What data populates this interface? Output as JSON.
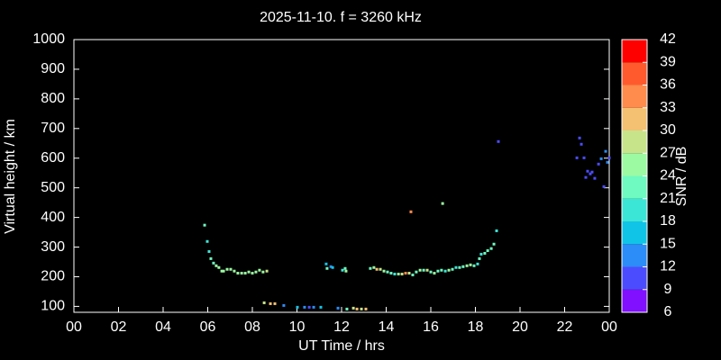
{
  "chart_data": {
    "type": "scatter",
    "title": "2025-11-10. f = 3260 kHz",
    "x_label": "UT Time / hrs",
    "y_label": "Virtual height / km",
    "xlim": [
      0,
      24
    ],
    "xticks": [
      {
        "value": 0,
        "label": "00"
      },
      {
        "value": 2,
        "label": "02"
      },
      {
        "value": 4,
        "label": "04"
      },
      {
        "value": 6,
        "label": "06"
      },
      {
        "value": 8,
        "label": "08"
      },
      10,
      12,
      14,
      16,
      18,
      20,
      22,
      {
        "value": 24,
        "label": "00"
      }
    ],
    "ylim": [
      80,
      1000
    ],
    "yticks": [
      100,
      200,
      300,
      400,
      500,
      600,
      700,
      800,
      900,
      1000
    ],
    "x": [
      5.86,
      5.98,
      6.06,
      6.14,
      6.26,
      6.38,
      6.5,
      6.63,
      6.71,
      6.87,
      7.03,
      7.19,
      7.35,
      7.52,
      7.68,
      7.84,
      8.0,
      8.16,
      8.32,
      8.48,
      8.65,
      8.53,
      8.81,
      9.01,
      9.41,
      10.02,
      10.34,
      10.55,
      10.75,
      11.07,
      11.84,
      12.24,
      12.53,
      12.69,
      12.89,
      13.09,
      11.31,
      11.35,
      11.52,
      11.6,
      12.04,
      12.16,
      12.2,
      13.29,
      13.45,
      13.58,
      13.74,
      13.9,
      14.06,
      14.22,
      14.38,
      14.55,
      14.71,
      14.87,
      15.03,
      15.19,
      15.35,
      15.52,
      15.68,
      15.84,
      16.0,
      16.16,
      16.32,
      16.48,
      16.65,
      16.81,
      16.97,
      17.13,
      17.29,
      17.45,
      17.62,
      17.78,
      17.94,
      18.1,
      18.18,
      18.26,
      18.42,
      18.55,
      18.71,
      18.83,
      18.95,
      15.11,
      16.53,
      19.03,
      22.67,
      22.75,
      22.55,
      22.87,
      23.03,
      23.15,
      23.23,
      22.95,
      23.35,
      23.52,
      23.64,
      23.76,
      23.84,
      23.92,
      24.0
    ],
    "values": [
      374,
      319,
      285,
      261,
      246,
      237,
      231,
      219,
      219,
      225,
      225,
      219,
      212,
      212,
      212,
      216,
      212,
      216,
      222,
      216,
      219,
      112,
      109,
      109,
      103,
      97,
      97,
      97,
      97,
      97,
      94,
      91,
      94,
      91,
      91,
      91,
      243,
      228,
      234,
      231,
      222,
      228,
      219,
      228,
      231,
      225,
      225,
      219,
      216,
      212,
      209,
      209,
      209,
      212,
      212,
      206,
      216,
      222,
      222,
      222,
      216,
      212,
      219,
      222,
      219,
      222,
      225,
      231,
      231,
      234,
      237,
      240,
      237,
      243,
      261,
      276,
      279,
      288,
      295,
      310,
      355,
      419,
      447,
      656,
      668,
      647,
      601,
      601,
      556,
      547,
      553,
      535,
      532,
      580,
      598,
      504,
      623,
      586,
      601
    ],
    "snr": [
      21,
      18,
      18,
      21,
      21,
      24,
      24,
      24,
      24,
      24,
      24,
      24,
      24,
      24,
      24,
      24,
      24,
      24,
      24,
      24,
      27,
      27,
      30,
      30,
      12,
      15,
      12,
      9,
      12,
      15,
      12,
      21,
      27,
      30,
      27,
      30,
      15,
      21,
      12,
      15,
      18,
      21,
      24,
      21,
      24,
      30,
      27,
      24,
      21,
      21,
      18,
      24,
      27,
      33,
      27,
      21,
      21,
      24,
      21,
      27,
      21,
      24,
      21,
      21,
      18,
      24,
      21,
      18,
      21,
      21,
      24,
      24,
      21,
      18,
      21,
      18,
      21,
      21,
      21,
      21,
      18,
      33,
      24,
      9,
      9,
      9,
      9,
      9,
      9,
      9,
      9,
      9,
      9,
      9,
      12,
      9,
      12,
      12,
      9
    ],
    "colorbar": {
      "label": "SNR / dB",
      "lim": [
        6,
        42
      ],
      "ticks": [
        6,
        9,
        12,
        15,
        18,
        21,
        24,
        27,
        30,
        33,
        36,
        39,
        42
      ],
      "colors": [
        "#8010ff",
        "#4c4cff",
        "#2c8cf8",
        "#10c4e8",
        "#3ce6d6",
        "#6efac0",
        "#9cfaa2",
        "#c8e48a",
        "#f4c072",
        "#ff8c4c",
        "#ff5a2e",
        "#ff0000"
      ]
    }
  }
}
